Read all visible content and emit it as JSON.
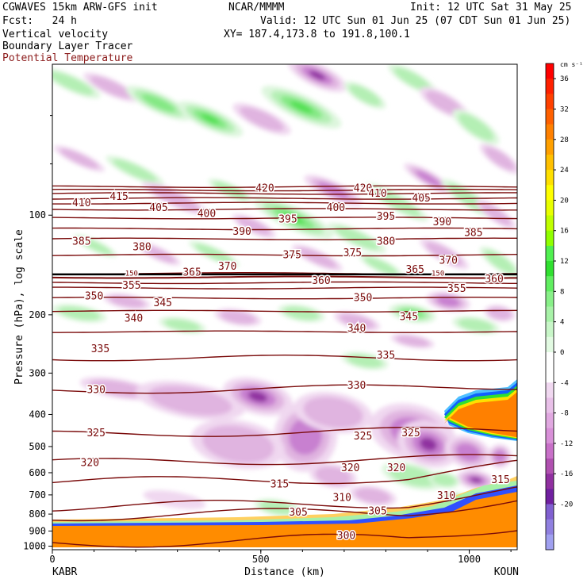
{
  "header": {
    "model": "CGWAVES 15km ARW-GFS init",
    "org": "NCAR/MMMM",
    "init": "Init: 12 UTC Sat 31 May 25",
    "fcst": "Fcst:   24 h",
    "valid": "Valid: 12 UTC Sun 01 Jun 25 (07 CDT Sun 01 Jun 25)",
    "field1": "Vertical velocity",
    "field2": "Boundary Layer Tracer",
    "field3": "Potential Temperature",
    "xy": "XY= 187.4,173.8 to 191.8,100.1"
  },
  "colors": {
    "theta": "#7a0a0a",
    "boundary_layer": "#ff8c00",
    "title_red": "#8b1a1a"
  },
  "chart_data": {
    "type": "heatmap",
    "title": "",
    "xlabel": "Distance (km)",
    "ylabel": "Pressure (hPa), log scale",
    "x_ticks": [
      0,
      500,
      1000
    ],
    "x_range_km": [
      0,
      1115
    ],
    "y_ticks": [
      100,
      200,
      300,
      400,
      500,
      600,
      700,
      800,
      900,
      1000
    ],
    "y_scale": "log",
    "y_range_hpa": [
      1025,
      35
    ],
    "left_station": "KABR",
    "right_station": "KOUN",
    "colorbar": {
      "units": "cm s⁻¹",
      "tick_labels": [
        36,
        32,
        28,
        24,
        20,
        16,
        12,
        8,
        4,
        0,
        -4,
        -8,
        -12,
        -16,
        -20
      ],
      "colors": [
        "#ff0000",
        "#ff2000",
        "#ff4000",
        "#ff6000",
        "#ff8000",
        "#ffa000",
        "#ffc000",
        "#ffe000",
        "#ffff00",
        "#e8ff00",
        "#c0ff00",
        "#90ff00",
        "#50f050",
        "#30e030",
        "#60ee60",
        "#88f088",
        "#a8f2a8",
        "#c8f6c8",
        "#e2fae2",
        "#ffffff",
        "#ffffff",
        "#f0d8f0",
        "#e8c0e8",
        "#e0a8e0",
        "#d890d8",
        "#c870c8",
        "#b050b0",
        "#9030a0",
        "#7020a0",
        "#8060d0",
        "#9080e0",
        "#a0a0f0"
      ]
    },
    "theta_contours": [
      {
        "value": 300,
        "p": 975
      },
      {
        "value": 305,
        "p": 810
      },
      {
        "value": 310,
        "p": 760
      },
      {
        "value": 315,
        "p": 640
      },
      {
        "value": 320,
        "p": 560
      },
      {
        "value": 325,
        "p": 460
      },
      {
        "value": 330,
        "p": 340
      },
      {
        "value": 335,
        "p": 270
      },
      {
        "value": 340,
        "p": 225
      },
      {
        "value": 345,
        "p": 195
      },
      {
        "value": 350,
        "p": 178
      },
      {
        "value": 355,
        "p": 166
      },
      {
        "value": 360,
        "p": 160
      },
      {
        "value": 365,
        "p": 154
      },
      {
        "value": 370,
        "p": 150
      },
      {
        "value": 375,
        "p": 132
      },
      {
        "value": 380,
        "p": 118
      },
      {
        "value": 385,
        "p": 110
      },
      {
        "value": 390,
        "p": 102
      },
      {
        "value": 395,
        "p": 96
      },
      {
        "value": 400,
        "p": 92
      },
      {
        "value": 405,
        "p": 89
      },
      {
        "value": 410,
        "p": 86
      },
      {
        "value": 415,
        "p": 84
      },
      {
        "value": 420,
        "p": 82
      }
    ],
    "contour_labels": [
      {
        "text": "420",
        "x": 510,
        "p": 83
      },
      {
        "text": "420",
        "x": 745,
        "p": 83
      },
      {
        "text": "415",
        "x": 160,
        "p": 88
      },
      {
        "text": "410",
        "x": 780,
        "p": 86
      },
      {
        "text": "410",
        "x": 70,
        "p": 92
      },
      {
        "text": "405",
        "x": 255,
        "p": 95
      },
      {
        "text": "405",
        "x": 885,
        "p": 89
      },
      {
        "text": "400",
        "x": 370,
        "p": 99
      },
      {
        "text": "400",
        "x": 680,
        "p": 95
      },
      {
        "text": "395",
        "x": 565,
        "p": 103
      },
      {
        "text": "395",
        "x": 800,
        "p": 101
      },
      {
        "text": "390",
        "x": 455,
        "p": 112
      },
      {
        "text": "390",
        "x": 935,
        "p": 105
      },
      {
        "text": "385",
        "x": 70,
        "p": 120
      },
      {
        "text": "385",
        "x": 1010,
        "p": 113
      },
      {
        "text": "380",
        "x": 215,
        "p": 125
      },
      {
        "text": "380",
        "x": 800,
        "p": 120
      },
      {
        "text": "375",
        "x": 575,
        "p": 132
      },
      {
        "text": "375",
        "x": 720,
        "p": 130
      },
      {
        "text": "370",
        "x": 420,
        "p": 143
      },
      {
        "text": "370",
        "x": 950,
        "p": 137
      },
      {
        "text": "365",
        "x": 335,
        "p": 149
      },
      {
        "text": "365",
        "x": 870,
        "p": 146
      },
      {
        "text": "360",
        "x": 645,
        "p": 158
      },
      {
        "text": "360",
        "x": 1060,
        "p": 156
      },
      {
        "text": "355",
        "x": 190,
        "p": 163
      },
      {
        "text": "355",
        "x": 970,
        "p": 167
      },
      {
        "text": "350",
        "x": 100,
        "p": 176
      },
      {
        "text": "350",
        "x": 745,
        "p": 178
      },
      {
        "text": "345",
        "x": 265,
        "p": 184
      },
      {
        "text": "345",
        "x": 855,
        "p": 203
      },
      {
        "text": "340",
        "x": 195,
        "p": 205
      },
      {
        "text": "340",
        "x": 730,
        "p": 220
      },
      {
        "text": "335",
        "x": 115,
        "p": 254
      },
      {
        "text": "335",
        "x": 800,
        "p": 265
      },
      {
        "text": "330",
        "x": 105,
        "p": 337
      },
      {
        "text": "330",
        "x": 730,
        "p": 327
      },
      {
        "text": "325",
        "x": 105,
        "p": 455
      },
      {
        "text": "325",
        "x": 745,
        "p": 465
      },
      {
        "text": "325",
        "x": 860,
        "p": 455
      },
      {
        "text": "320",
        "x": 90,
        "p": 560
      },
      {
        "text": "320",
        "x": 715,
        "p": 580
      },
      {
        "text": "320",
        "x": 825,
        "p": 580
      },
      {
        "text": "315",
        "x": 545,
        "p": 650
      },
      {
        "text": "315",
        "x": 1075,
        "p": 630
      },
      {
        "text": "310",
        "x": 695,
        "p": 715
      },
      {
        "text": "310",
        "x": 945,
        "p": 705
      },
      {
        "text": "305",
        "x": 590,
        "p": 790
      },
      {
        "text": "305",
        "x": 780,
        "p": 785
      },
      {
        "text": "300",
        "x": 705,
        "p": 930
      },
      {
        "text": "150",
        "x": 190,
        "p": 149
      },
      {
        "text": "150",
        "x": 925,
        "p": 149
      }
    ]
  }
}
